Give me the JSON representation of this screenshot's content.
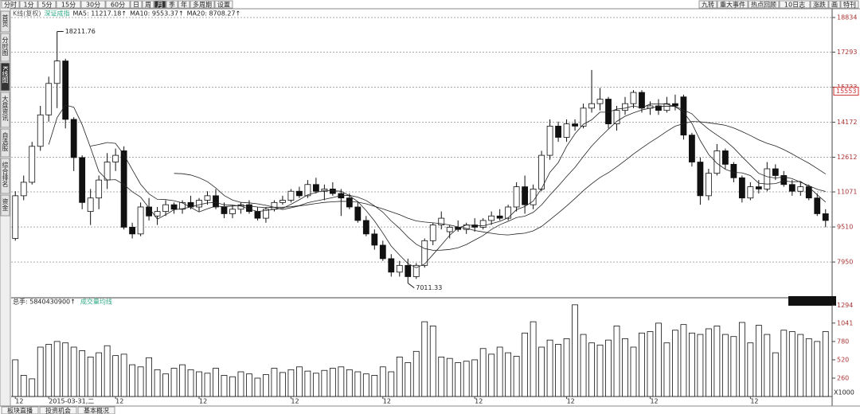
{
  "toolbar": {
    "left": [
      "分时",
      "1分",
      "5分",
      "15分",
      "30分",
      "60分",
      "日",
      "周",
      "月",
      "季",
      "年",
      "多周期",
      "设置"
    ],
    "right": [
      "九转",
      "重大事件",
      "热点回顾",
      "10日志",
      "涨跌",
      "画",
      "特刊"
    ]
  },
  "side_tabs": [
    "首页",
    "分时图",
    "K线图",
    "大盘资讯",
    "自选股",
    "综合排名",
    "资金"
  ],
  "bottom_tabs": [
    "板块直播",
    "投资机会",
    "基本概况"
  ],
  "chart_data": [
    {
      "type": "candlestick",
      "legend": [
        "K线(复权)",
        "深证成指",
        "MA5: 11217.18↑",
        "MA10: 9553.37↑",
        "MA20: 8708.27↑"
      ],
      "ylim": [
        6430,
        19330
      ],
      "yticks": [
        18834,
        17293,
        15733,
        14172,
        12612,
        11071,
        9510,
        7950
      ],
      "grid": true,
      "price_marker": 15553,
      "ma_periods": [
        5,
        10,
        20
      ],
      "candles": [
        [
          9000,
          11100,
          8900,
          10900
        ],
        [
          10900,
          11800,
          10700,
          11500
        ],
        [
          11500,
          13300,
          11400,
          13100
        ],
        [
          13100,
          14900,
          12900,
          14500
        ],
        [
          14500,
          16200,
          14200,
          15900
        ],
        [
          15900,
          18211.76,
          14800,
          16900
        ],
        [
          16900,
          17000,
          13900,
          14300
        ],
        [
          14300,
          14400,
          12000,
          12600
        ],
        [
          12600,
          12700,
          10300,
          10600
        ],
        [
          10200,
          11200,
          9600,
          10800
        ],
        [
          10800,
          11800,
          10300,
          11600
        ],
        [
          11600,
          12800,
          11200,
          12400
        ],
        [
          12400,
          13000,
          12000,
          12700
        ],
        [
          12900,
          13100,
          9400,
          9500
        ],
        [
          9500,
          9700,
          9000,
          9200
        ],
        [
          9200,
          10600,
          9100,
          10400
        ],
        [
          10400,
          10800,
          9800,
          10000
        ],
        [
          10000,
          10400,
          9600,
          10200
        ],
        [
          10200,
          10700,
          10000,
          10500
        ],
        [
          10500,
          10600,
          10100,
          10300
        ],
        [
          10300,
          10700,
          10100,
          10600
        ],
        [
          10600,
          10900,
          10300,
          10400
        ],
        [
          10400,
          10800,
          10200,
          10700
        ],
        [
          10700,
          11100,
          10500,
          10900
        ],
        [
          10900,
          11200,
          10300,
          10400
        ],
        [
          10400,
          10600,
          9900,
          10100
        ],
        [
          10100,
          10500,
          9900,
          10300
        ],
        [
          10300,
          10600,
          10100,
          10500
        ],
        [
          10500,
          10700,
          10100,
          10200
        ],
        [
          10200,
          10400,
          9800,
          9900
        ],
        [
          9900,
          10400,
          9700,
          10300
        ],
        [
          10300,
          10700,
          10200,
          10600
        ],
        [
          10600,
          10900,
          10500,
          10700
        ],
        [
          10700,
          11200,
          10600,
          11100
        ],
        [
          11100,
          11300,
          10800,
          10900
        ],
        [
          10900,
          11600,
          10800,
          11400
        ],
        [
          11400,
          11700,
          11000,
          11100
        ],
        [
          11100,
          11400,
          10700,
          11200
        ],
        [
          11200,
          11500,
          10900,
          11000
        ],
        [
          11000,
          11200,
          10000,
          10800
        ],
        [
          10800,
          11000,
          10300,
          10400
        ],
        [
          10400,
          10600,
          9700,
          9800
        ],
        [
          9800,
          10000,
          9100,
          9200
        ],
        [
          9200,
          9400,
          8500,
          8700
        ],
        [
          8700,
          8900,
          8000,
          8100
        ],
        [
          8100,
          8300,
          7300,
          7500
        ],
        [
          7500,
          8000,
          7300,
          7800
        ],
        [
          7800,
          8100,
          7011.33,
          7300
        ],
        [
          7300,
          7900,
          7200,
          7800
        ],
        [
          7800,
          9000,
          7700,
          8900
        ],
        [
          8900,
          9700,
          8700,
          9600
        ],
        [
          9600,
          10200,
          9400,
          9900
        ],
        [
          9300,
          9600,
          9000,
          9500
        ],
        [
          9500,
          9800,
          9300,
          9400
        ],
        [
          9400,
          9700,
          9200,
          9600
        ],
        [
          9600,
          9900,
          9300,
          9500
        ],
        [
          9500,
          9900,
          9400,
          9800
        ],
        [
          9800,
          10200,
          9600,
          10000
        ],
        [
          10000,
          10300,
          9800,
          9900
        ],
        [
          9900,
          10500,
          9800,
          10400
        ],
        [
          10400,
          11500,
          10200,
          11300
        ],
        [
          11300,
          11800,
          10100,
          10500
        ],
        [
          10500,
          11400,
          10300,
          11200
        ],
        [
          11200,
          12900,
          11100,
          12700
        ],
        [
          12700,
          14300,
          12500,
          14000
        ],
        [
          14000,
          14200,
          13300,
          13500
        ],
        [
          13500,
          14300,
          13300,
          14100
        ],
        [
          14100,
          14300,
          13800,
          14000
        ],
        [
          14000,
          15000,
          13900,
          14800
        ],
        [
          14800,
          16500,
          14600,
          15000
        ],
        [
          15000,
          15700,
          14700,
          15200
        ],
        [
          15200,
          15300,
          13900,
          14100
        ],
        [
          14100,
          14900,
          13800,
          14700
        ],
        [
          14700,
          15300,
          14500,
          15000
        ],
        [
          15000,
          15600,
          14800,
          15500
        ],
        [
          15500,
          15600,
          14600,
          14800
        ],
        [
          14800,
          15100,
          14500,
          14900
        ],
        [
          14900,
          15200,
          14500,
          14700
        ],
        [
          14700,
          15300,
          14600,
          15000
        ],
        [
          15000,
          15400,
          14700,
          14900
        ],
        [
          15300,
          15400,
          13400,
          13600
        ],
        [
          13600,
          13700,
          12200,
          12400
        ],
        [
          12400,
          12600,
          10500,
          10900
        ],
        [
          10900,
          12100,
          10700,
          11900
        ],
        [
          11900,
          13200,
          11800,
          12900
        ],
        [
          12900,
          13000,
          12100,
          12300
        ],
        [
          12300,
          12400,
          11500,
          11700
        ],
        [
          11700,
          11800,
          10600,
          10800
        ],
        [
          10800,
          11500,
          10700,
          11300
        ],
        [
          11300,
          11600,
          11000,
          11200
        ],
        [
          11200,
          12400,
          11100,
          12100
        ],
        [
          12100,
          12300,
          11600,
          11800
        ],
        [
          11800,
          12000,
          11300,
          11400
        ],
        [
          11400,
          11600,
          10900,
          11100
        ],
        [
          11100,
          11500,
          10900,
          11300
        ],
        [
          11300,
          11400,
          10700,
          10800
        ],
        [
          10800,
          11000,
          10000,
          10100
        ],
        [
          10100,
          10300,
          9500,
          9800
        ]
      ]
    },
    {
      "type": "bar",
      "header": [
        "总手: 5840430900↑",
        "成交量均线"
      ],
      "unit_label": "X1000",
      "ylim": [
        0,
        1400
      ],
      "yticks": [
        1294,
        1041,
        780,
        520,
        260
      ],
      "categories": [
        "12",
        null,
        null,
        null,
        "2015-03-31,二",
        null,
        null,
        null,
        null,
        null,
        null,
        null,
        "12",
        null,
        null,
        null,
        null,
        null,
        null,
        null,
        null,
        null,
        "12",
        null,
        null,
        null,
        null,
        null,
        null,
        null,
        null,
        null,
        null,
        "12",
        null,
        null,
        null,
        null,
        null,
        null,
        null,
        null,
        null,
        null,
        "12",
        null,
        null,
        null,
        null,
        null,
        null,
        null,
        null,
        null,
        null,
        "12",
        null,
        null,
        null,
        null,
        null,
        null,
        null,
        null,
        null,
        null,
        "12",
        null,
        null,
        null,
        null,
        null,
        null,
        null,
        null,
        null,
        "12",
        null,
        null,
        null,
        null,
        null,
        null,
        null,
        null,
        null,
        null,
        null,
        "12",
        null,
        null,
        null,
        null,
        null,
        null,
        null,
        null,
        null
      ],
      "values": [
        520,
        300,
        250,
        700,
        740,
        780,
        760,
        700,
        650,
        560,
        620,
        720,
        580,
        600,
        450,
        420,
        550,
        380,
        320,
        400,
        450,
        380,
        350,
        330,
        400,
        300,
        280,
        350,
        320,
        260,
        310,
        400,
        340,
        380,
        420,
        360,
        330,
        370,
        400,
        420,
        380,
        350,
        320,
        300,
        420,
        350,
        560,
        480,
        640,
        1060,
        1000,
        560,
        540,
        480,
        500,
        520,
        680,
        600,
        700,
        620,
        570,
        900,
        1060,
        700,
        800,
        740,
        820,
        1300,
        880,
        760,
        730,
        800,
        1000,
        820,
        700,
        900,
        920,
        1040,
        760,
        940,
        1020,
        900,
        880,
        960,
        1000,
        880,
        850,
        1050,
        760,
        1010,
        880,
        620,
        940,
        920,
        880,
        820,
        780,
        920
      ]
    }
  ]
}
